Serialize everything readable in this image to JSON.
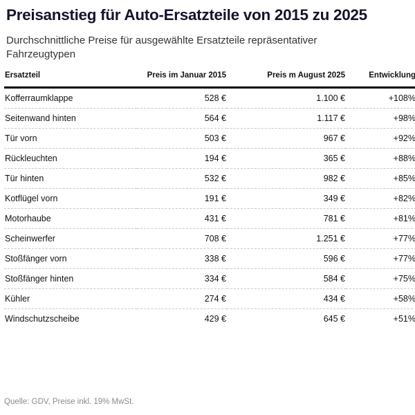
{
  "header": {
    "title": "Preisanstieg für Auto-Ersatzteile von 2015 zu 2025",
    "subtitle": "Durchschnittliche Preise für ausgewählte Ersatzteile repräsentativer Fahrzeugtypen"
  },
  "table": {
    "columns": [
      "Ersatzteil",
      "Preis im Januar 2015",
      "Preis m August 2025",
      "Entwicklung"
    ],
    "rows": [
      [
        "Kofferraumklappe",
        "528 €",
        "1.100 €",
        "+108%"
      ],
      [
        "Seitenwand hinten",
        "564 €",
        "1.117 €",
        "+98%"
      ],
      [
        "Tür vorn",
        "503 €",
        "967 €",
        "+92%"
      ],
      [
        "Rückleuchten",
        "194 €",
        "365 €",
        "+88%"
      ],
      [
        "Tür hinten",
        "532 €",
        "982 €",
        "+85%"
      ],
      [
        "Kotflügel vorn",
        "191 €",
        "349 €",
        "+82%"
      ],
      [
        "Motorhaube",
        "431 €",
        "781 €",
        "+81%"
      ],
      [
        "Scheinwerfer",
        "708 €",
        "1.251 €",
        "+77%"
      ],
      [
        "Stoßfänger vorn",
        "338 €",
        "596 €",
        "+77%"
      ],
      [
        "Stoßfänger hinten",
        "334 €",
        "584 €",
        "+75%"
      ],
      [
        "Kühler",
        "274 €",
        "434 €",
        "+58%"
      ],
      [
        "Windschutzscheibe",
        "429 €",
        "645 €",
        "+51%"
      ]
    ]
  },
  "footer": {
    "source": "Quelle: GDV, Preise inkl. 19% MwSt."
  },
  "colors": {
    "title": "#14142b",
    "subtitle": "#333333",
    "footer": "#8a8a8a",
    "header_rule": "#000000",
    "row_divider": "#c8c8c8"
  },
  "chart_data": {
    "type": "table",
    "title": "Preisanstieg für Auto-Ersatzteile von 2015 zu 2025",
    "subtitle": "Durchschnittliche Preise für ausgewählte Ersatzteile repräsentativer Fahrzeugtypen",
    "columns": [
      "Ersatzteil",
      "Preis im Januar 2015",
      "Preis m August 2025",
      "Entwicklung"
    ],
    "categories": [
      "Kofferraumklappe",
      "Seitenwand hinten",
      "Tür vorn",
      "Rückleuchten",
      "Tür hinten",
      "Kotflügel vorn",
      "Motorhaube",
      "Scheinwerfer",
      "Stoßfänger vorn",
      "Stoßfänger hinten",
      "Kühler",
      "Windschutzscheibe"
    ],
    "series": [
      {
        "name": "Preis im Januar 2015",
        "unit": "EUR",
        "values": [
          528,
          564,
          503,
          194,
          532,
          191,
          431,
          708,
          338,
          334,
          274,
          429
        ]
      },
      {
        "name": "Preis m August 2025",
        "unit": "EUR",
        "values": [
          1100,
          1117,
          967,
          365,
          982,
          349,
          781,
          1251,
          596,
          584,
          434,
          645
        ]
      },
      {
        "name": "Entwicklung",
        "unit": "%",
        "values": [
          108,
          98,
          92,
          88,
          85,
          82,
          81,
          77,
          77,
          75,
          58,
          51
        ]
      }
    ],
    "source": "Quelle: GDV, Preise inkl. 19% MwSt."
  }
}
